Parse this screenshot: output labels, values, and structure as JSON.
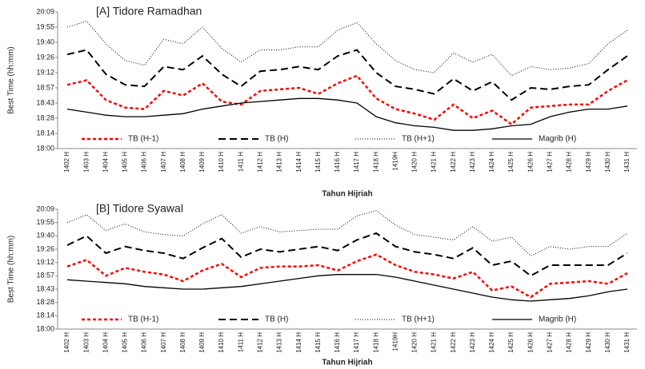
{
  "chart_data": [
    {
      "type": "line",
      "title": "[A]   Tidore Ramadhan",
      "x_label": "Tahun Hijriah",
      "y_label": "Best Time (hh:mm)",
      "categories": [
        "1402 H",
        "1403 H",
        "1404 H",
        "1405 H",
        "1406 H",
        "1407 H",
        "1408 H",
        "1409 H",
        "1410 H",
        "1411 H",
        "1412 H",
        "1413 H",
        "1414 H",
        "1415 H",
        "1416 H",
        "1417 H",
        "1418 H",
        "1419H",
        "1420 H",
        "1421 H",
        "1422 H",
        "1423 H",
        "1424 H",
        "1425 H",
        "1426 H",
        "1427 H",
        "1428 H",
        "1429 H",
        "1430 H",
        "1431 H"
      ],
      "ylim": [
        0.75,
        0.84
      ],
      "yticks": [
        {
          "value": 0.75,
          "label": "18:00"
        },
        {
          "value": 0.76,
          "label": "18:14"
        },
        {
          "value": 0.77,
          "label": "18:28"
        },
        {
          "value": 0.78,
          "label": "18:43"
        },
        {
          "value": 0.79,
          "label": "18:57"
        },
        {
          "value": 0.8,
          "label": "19:12"
        },
        {
          "value": 0.81,
          "label": "19:26"
        },
        {
          "value": 0.82,
          "label": "19:40"
        },
        {
          "value": 0.83,
          "label": "19:55"
        },
        {
          "value": 0.84,
          "label": "20:09"
        }
      ],
      "series": [
        {
          "name": "TB (H-1)",
          "color": "#ff0000",
          "dash": "4,3",
          "width": 2.5,
          "values": [
            0.792,
            0.795,
            0.782,
            0.777,
            0.776,
            0.788,
            0.785,
            0.793,
            0.781,
            0.779,
            0.788,
            0.789,
            0.79,
            0.786,
            0.793,
            0.798,
            0.783,
            0.776,
            0.773,
            0.769,
            0.779,
            0.77,
            0.775,
            0.766,
            0.777,
            0.778,
            0.779,
            0.779,
            0.788,
            0.795
          ]
        },
        {
          "name": "TB (H)",
          "color": "#000000",
          "dash": "9,5",
          "width": 2,
          "values": [
            0.812,
            0.815,
            0.799,
            0.792,
            0.791,
            0.804,
            0.802,
            0.811,
            0.799,
            0.791,
            0.801,
            0.802,
            0.804,
            0.802,
            0.811,
            0.815,
            0.8,
            0.791,
            0.789,
            0.786,
            0.796,
            0.788,
            0.794,
            0.782,
            0.79,
            0.789,
            0.791,
            0.792,
            0.802,
            0.811
          ]
        },
        {
          "name": "TB (H+1)",
          "color": "#000000",
          "dash": "1,2",
          "width": 1,
          "values": [
            0.83,
            0.834,
            0.819,
            0.808,
            0.805,
            0.822,
            0.819,
            0.83,
            0.816,
            0.807,
            0.815,
            0.815,
            0.817,
            0.817,
            0.828,
            0.833,
            0.819,
            0.808,
            0.802,
            0.8,
            0.813,
            0.807,
            0.812,
            0.798,
            0.804,
            0.802,
            0.803,
            0.806,
            0.819,
            0.828
          ]
        },
        {
          "name": "Magrib (H)",
          "color": "#000000",
          "dash": "none",
          "width": 1.3,
          "values": [
            0.776,
            0.774,
            0.772,
            0.771,
            0.771,
            0.772,
            0.773,
            0.776,
            0.778,
            0.78,
            0.781,
            0.782,
            0.783,
            0.783,
            0.782,
            0.78,
            0.771,
            0.767,
            0.765,
            0.764,
            0.762,
            0.762,
            0.763,
            0.765,
            0.766,
            0.771,
            0.774,
            0.776,
            0.776,
            0.778
          ]
        }
      ]
    },
    {
      "type": "line",
      "title": "[B]   Tidore Syawal",
      "x_label": "Tahun Hijriah",
      "y_label": "Best Time (hh:mm)",
      "categories": [
        "1402 H",
        "1403 H",
        "1404 H",
        "1405 H",
        "1406 H",
        "1407 H",
        "1408 H",
        "1409 H",
        "1410 H",
        "1411 H",
        "1412 H",
        "1413 H",
        "1414 H",
        "1415 H",
        "1416 H",
        "1417 H",
        "1418 H",
        "1419H",
        "1420 H",
        "1421 H",
        "1422 H",
        "1423 H",
        "1424 H",
        "1425 H",
        "1426 H",
        "1427 H",
        "1428 H",
        "1429 H",
        "1430 H",
        "1431 H"
      ],
      "ylim": [
        0.75,
        0.84
      ],
      "yticks": [
        {
          "value": 0.75,
          "label": "18:00"
        },
        {
          "value": 0.76,
          "label": "18:14"
        },
        {
          "value": 0.77,
          "label": "18:28"
        },
        {
          "value": 0.78,
          "label": "18:43"
        },
        {
          "value": 0.79,
          "label": "18:57"
        },
        {
          "value": 0.8,
          "label": "19:12"
        },
        {
          "value": 0.81,
          "label": "19:26"
        },
        {
          "value": 0.82,
          "label": "19:40"
        },
        {
          "value": 0.83,
          "label": "19:55"
        },
        {
          "value": 0.84,
          "label": "20:09"
        }
      ],
      "series": [
        {
          "name": "TB (H-1)",
          "color": "#ff0000",
          "dash": "4,3",
          "width": 2.5,
          "values": [
            0.797,
            0.802,
            0.79,
            0.796,
            0.793,
            0.791,
            0.786,
            0.794,
            0.799,
            0.789,
            0.796,
            0.797,
            0.797,
            0.798,
            0.794,
            0.801,
            0.806,
            0.798,
            0.793,
            0.791,
            0.788,
            0.793,
            0.779,
            0.782,
            0.774,
            0.784,
            0.785,
            0.786,
            0.784,
            0.792
          ]
        },
        {
          "name": "TB (H)",
          "color": "#000000",
          "dash": "9,5",
          "width": 2,
          "values": [
            0.813,
            0.82,
            0.807,
            0.812,
            0.809,
            0.807,
            0.803,
            0.811,
            0.818,
            0.804,
            0.81,
            0.808,
            0.81,
            0.812,
            0.809,
            0.817,
            0.822,
            0.812,
            0.808,
            0.806,
            0.803,
            0.811,
            0.798,
            0.801,
            0.79,
            0.798,
            0.798,
            0.798,
            0.798,
            0.807
          ]
        },
        {
          "name": "TB (H+1)",
          "color": "#000000",
          "dash": "1,2",
          "width": 1,
          "values": [
            0.83,
            0.836,
            0.824,
            0.829,
            0.823,
            0.821,
            0.82,
            0.829,
            0.836,
            0.822,
            0.827,
            0.823,
            0.824,
            0.825,
            0.825,
            0.835,
            0.839,
            0.828,
            0.821,
            0.819,
            0.817,
            0.827,
            0.816,
            0.819,
            0.805,
            0.812,
            0.81,
            0.812,
            0.812,
            0.822
          ]
        },
        {
          "name": "Magrib (H)",
          "color": "#000000",
          "dash": "none",
          "width": 1.3,
          "values": [
            0.787,
            0.786,
            0.785,
            0.784,
            0.782,
            0.781,
            0.78,
            0.78,
            0.781,
            0.782,
            0.784,
            0.786,
            0.788,
            0.79,
            0.791,
            0.791,
            0.791,
            0.789,
            0.786,
            0.783,
            0.78,
            0.777,
            0.774,
            0.772,
            0.771,
            0.772,
            0.773,
            0.775,
            0.778,
            0.78
          ]
        }
      ]
    }
  ]
}
